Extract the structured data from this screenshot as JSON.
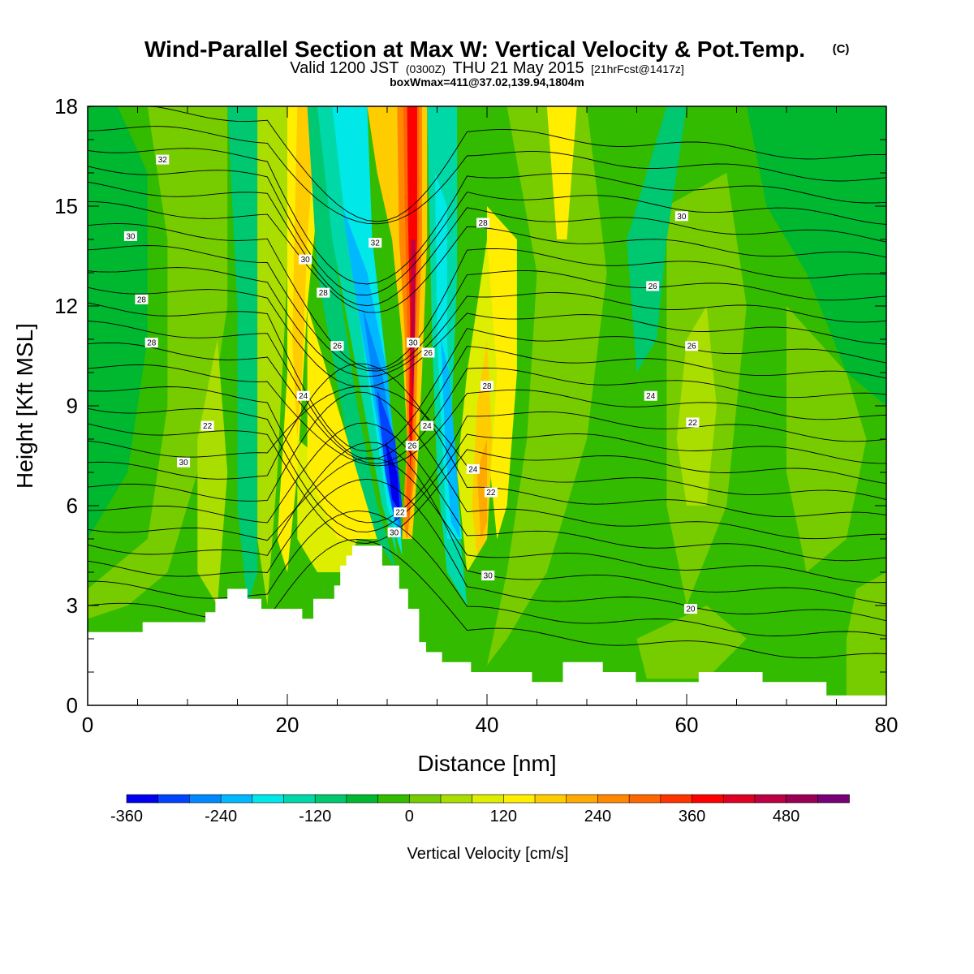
{
  "chart_data": {
    "type": "heatmap",
    "title": "Wind-Parallel Section at Max W: Vertical Velocity & Pot.Temp.",
    "title_mark": "(C)",
    "subtitle_parts": [
      "Valid 1200 JST",
      "(0300Z)",
      "THU 21 May 2015",
      "[21hrFcst@1417z]"
    ],
    "subtitle2": "boxWmax=411@37.02,139.94,1804m",
    "xlabel": "Distance [nm]",
    "ylabel": "Height [Kft MSL]",
    "xlim": [
      0,
      80
    ],
    "ylim": [
      0,
      18
    ],
    "x_ticks": [
      0,
      20,
      40,
      60,
      80
    ],
    "y_ticks": [
      0,
      3,
      6,
      9,
      12,
      15,
      18
    ],
    "colorbar": {
      "title": "Vertical Velocity [cm/s]",
      "levels": [
        -360,
        -240,
        -120,
        0,
        120,
        240,
        360,
        480
      ],
      "colors": [
        "#0000ee",
        "#0044ff",
        "#0088ff",
        "#00b8ff",
        "#00e8e8",
        "#00d8a8",
        "#00c870",
        "#00b830",
        "#33bb00",
        "#77cc00",
        "#aadd00",
        "#ddee00",
        "#ffee00",
        "#ffcc00",
        "#ffaa00",
        "#ff8800",
        "#ff6600",
        "#ff3300",
        "#ff0000",
        "#dd0022",
        "#bb0044",
        "#990055",
        "#770077"
      ]
    },
    "contour_labels": [
      {
        "x": 7.5,
        "y": 16.4,
        "text": "32"
      },
      {
        "x": 4.3,
        "y": 14.1,
        "text": "30"
      },
      {
        "x": 5.4,
        "y": 12.2,
        "text": "28"
      },
      {
        "x": 6.4,
        "y": 10.9,
        "text": "28"
      },
      {
        "x": 12,
        "y": 8.4,
        "text": "22"
      },
      {
        "x": 9.6,
        "y": 7.3,
        "text": "30"
      },
      {
        "x": 21.6,
        "y": 9.3,
        "text": "24"
      },
      {
        "x": 25,
        "y": 10.8,
        "text": "26"
      },
      {
        "x": 23.6,
        "y": 12.4,
        "text": "28"
      },
      {
        "x": 21.8,
        "y": 13.4,
        "text": "30"
      },
      {
        "x": 28.8,
        "y": 13.9,
        "text": "32"
      },
      {
        "x": 32.6,
        "y": 10.9,
        "text": "30"
      },
      {
        "x": 34.1,
        "y": 10.6,
        "text": "26"
      },
      {
        "x": 34,
        "y": 8.4,
        "text": "24"
      },
      {
        "x": 32.5,
        "y": 7.8,
        "text": "26"
      },
      {
        "x": 31.3,
        "y": 5.8,
        "text": "22"
      },
      {
        "x": 30.7,
        "y": 5.2,
        "text": "30"
      },
      {
        "x": 40,
        "y": 9.6,
        "text": "28"
      },
      {
        "x": 38.6,
        "y": 7.1,
        "text": "24"
      },
      {
        "x": 40.4,
        "y": 6.4,
        "text": "22"
      },
      {
        "x": 40.1,
        "y": 3.9,
        "text": "30"
      },
      {
        "x": 39.6,
        "y": 14.5,
        "text": "28"
      },
      {
        "x": 59.5,
        "y": 14.7,
        "text": "30"
      },
      {
        "x": 56.6,
        "y": 12.6,
        "text": "26"
      },
      {
        "x": 60.5,
        "y": 10.8,
        "text": "26"
      },
      {
        "x": 56.4,
        "y": 9.3,
        "text": "24"
      },
      {
        "x": 60.6,
        "y": 8.5,
        "text": "22"
      },
      {
        "x": 60.4,
        "y": 2.9,
        "text": "20"
      }
    ]
  }
}
